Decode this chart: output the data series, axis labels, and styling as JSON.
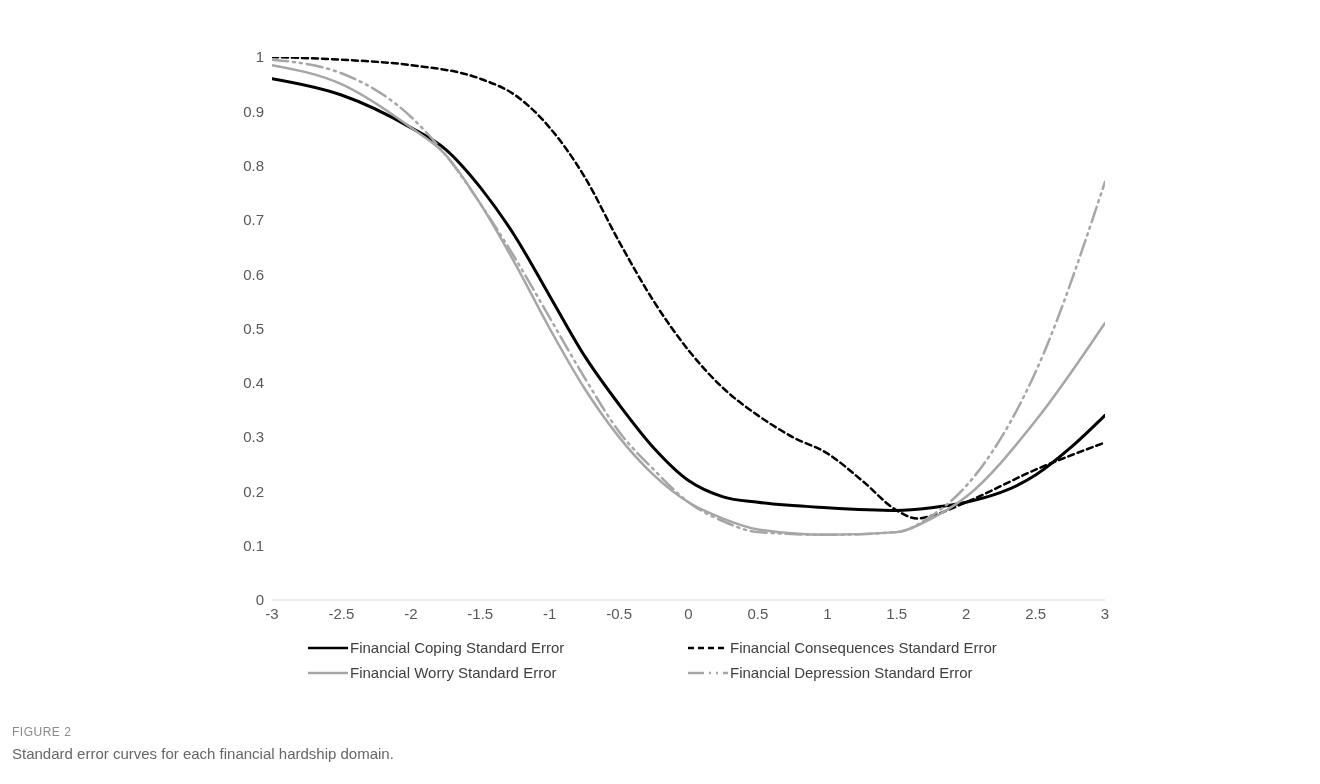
{
  "chart_data": {
    "type": "line",
    "xlim": [
      -3,
      3
    ],
    "xticks": [
      -3,
      -2.5,
      -2,
      -1.5,
      -1,
      -0.5,
      0,
      0.5,
      1,
      1.5,
      2,
      2.5,
      3
    ],
    "ylim": [
      0,
      1
    ],
    "yticks": [
      0,
      0.1,
      0.2,
      0.3,
      0.4,
      0.5,
      0.6,
      0.7,
      0.8,
      0.9,
      1
    ],
    "grid": false,
    "legend": "bottom",
    "marker": "none",
    "annotations": [
      "FIGURE 2",
      "Standard error curves for each financial hardship domain."
    ],
    "series": [
      {
        "name": "Financial Coping Standard Error",
        "color": "#000000",
        "line_style": "solid",
        "x": [
          -3,
          -2.5,
          -2,
          -1.75,
          -1.5,
          -1.25,
          -1,
          -0.75,
          -0.5,
          -0.25,
          0,
          0.25,
          0.5,
          1,
          1.5,
          1.75,
          2,
          2.5,
          2.75,
          3
        ],
        "values": [
          0.96,
          0.93,
          0.87,
          0.83,
          0.76,
          0.67,
          0.56,
          0.45,
          0.36,
          0.28,
          0.22,
          0.19,
          0.18,
          0.17,
          0.165,
          0.17,
          0.18,
          0.23,
          0.28,
          0.34
        ]
      },
      {
        "name": "Financial Consequences Standard Error",
        "color": "#000000",
        "line_style": "dashed",
        "x": [
          -3,
          -2.5,
          -2,
          -1.5,
          -1.25,
          -1,
          -0.75,
          -0.5,
          -0.25,
          0,
          0.25,
          0.5,
          0.75,
          1,
          1.25,
          1.5,
          1.65,
          1.75,
          2,
          2.5,
          3
        ],
        "values": [
          1,
          0.995,
          0.985,
          0.96,
          0.93,
          0.87,
          0.78,
          0.66,
          0.55,
          0.46,
          0.39,
          0.34,
          0.3,
          0.27,
          0.22,
          0.165,
          0.15,
          0.155,
          0.18,
          0.24,
          0.29
        ]
      },
      {
        "name": "Financial Worry Standard Error",
        "color": "#a6a6a6",
        "line_style": "solid",
        "x": [
          -3,
          -2.5,
          -2,
          -1.75,
          -1.5,
          -1.25,
          -1,
          -0.75,
          -0.5,
          -0.25,
          0,
          0.25,
          0.5,
          1,
          1.5,
          1.75,
          2,
          2.5,
          3
        ],
        "values": [
          0.985,
          0.95,
          0.87,
          0.82,
          0.73,
          0.62,
          0.5,
          0.39,
          0.3,
          0.23,
          0.18,
          0.15,
          0.13,
          0.12,
          0.125,
          0.15,
          0.19,
          0.33,
          0.51
        ]
      },
      {
        "name": "Financial Depression Standard Error",
        "color": "#a6a6a6",
        "line_style": "dashed",
        "x": [
          -3,
          -2.5,
          -2,
          -1.75,
          -1.5,
          -1.25,
          -1,
          -0.75,
          -0.5,
          -0.25,
          0,
          0.25,
          0.5,
          1,
          1.5,
          1.75,
          2,
          2.5,
          3
        ],
        "values": [
          0.995,
          0.97,
          0.89,
          0.82,
          0.73,
          0.63,
          0.52,
          0.41,
          0.31,
          0.24,
          0.18,
          0.145,
          0.125,
          0.12,
          0.125,
          0.155,
          0.21,
          0.42,
          0.77
        ]
      }
    ]
  }
}
